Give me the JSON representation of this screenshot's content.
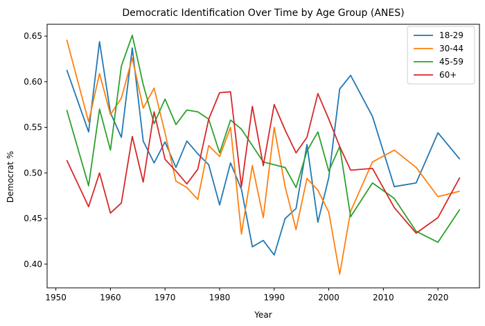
{
  "chart_data": {
    "type": "line",
    "title": "Democratic Identification Over Time by Age Group (ANES)",
    "xlabel": "Year",
    "ylabel": "Democrat %",
    "xlim": [
      1948.4,
      2027.6
    ],
    "ylim": [
      0.374,
      0.663
    ],
    "xticks": [
      1950,
      1960,
      1970,
      1980,
      1990,
      2000,
      2010,
      2020
    ],
    "yticks": [
      0.4,
      0.45,
      0.5,
      0.55,
      0.6,
      0.65
    ],
    "ytick_labels": [
      "0.40",
      "0.45",
      "0.50",
      "0.55",
      "0.60",
      "0.65"
    ],
    "grid": false,
    "legend_position": "top-right",
    "x": [
      1952,
      1956,
      1958,
      1960,
      1962,
      1964,
      1966,
      1968,
      1970,
      1972,
      1974,
      1976,
      1978,
      1980,
      1982,
      1984,
      1986,
      1988,
      1990,
      1992,
      1994,
      1996,
      1998,
      2000,
      2002,
      2004,
      2008,
      2012,
      2016,
      2020,
      2024
    ],
    "series": [
      {
        "name": "18-29",
        "color": "#1f77b4",
        "values": [
          0.613,
          0.545,
          0.644,
          0.566,
          0.539,
          0.637,
          0.535,
          0.511,
          0.534,
          0.506,
          0.535,
          0.521,
          0.509,
          0.465,
          0.511,
          0.482,
          0.419,
          0.426,
          0.41,
          0.45,
          0.461,
          0.531,
          0.446,
          0.495,
          0.592,
          0.607,
          0.562,
          0.485,
          0.489,
          0.544,
          0.515
        ]
      },
      {
        "name": "30-44",
        "color": "#ff7f0e",
        "values": [
          0.646,
          0.556,
          0.609,
          0.564,
          0.582,
          0.626,
          0.571,
          0.593,
          0.544,
          0.491,
          0.484,
          0.471,
          0.53,
          0.518,
          0.55,
          0.433,
          0.508,
          0.451,
          0.55,
          0.485,
          0.438,
          0.494,
          0.481,
          0.457,
          0.389,
          0.458,
          0.512,
          0.525,
          0.506,
          0.474,
          0.48
        ]
      },
      {
        "name": "45-59",
        "color": "#2ca02c",
        "values": [
          0.569,
          0.486,
          0.57,
          0.525,
          0.617,
          0.651,
          0.597,
          0.554,
          0.581,
          0.553,
          0.569,
          0.567,
          0.559,
          0.522,
          0.558,
          0.548,
          0.53,
          0.512,
          0.509,
          0.506,
          0.484,
          0.524,
          0.545,
          0.502,
          0.529,
          0.452,
          0.489,
          0.472,
          0.436,
          0.424,
          0.46
        ]
      },
      {
        "name": "60+",
        "color": "#d62728",
        "values": [
          0.514,
          0.463,
          0.5,
          0.456,
          0.467,
          0.54,
          0.49,
          0.567,
          0.515,
          0.502,
          0.488,
          0.504,
          0.559,
          0.588,
          0.589,
          0.485,
          0.573,
          0.508,
          0.575,
          0.547,
          0.522,
          0.539,
          0.587,
          0.559,
          0.529,
          0.503,
          0.505,
          0.462,
          0.434,
          0.451,
          0.495
        ]
      }
    ]
  }
}
